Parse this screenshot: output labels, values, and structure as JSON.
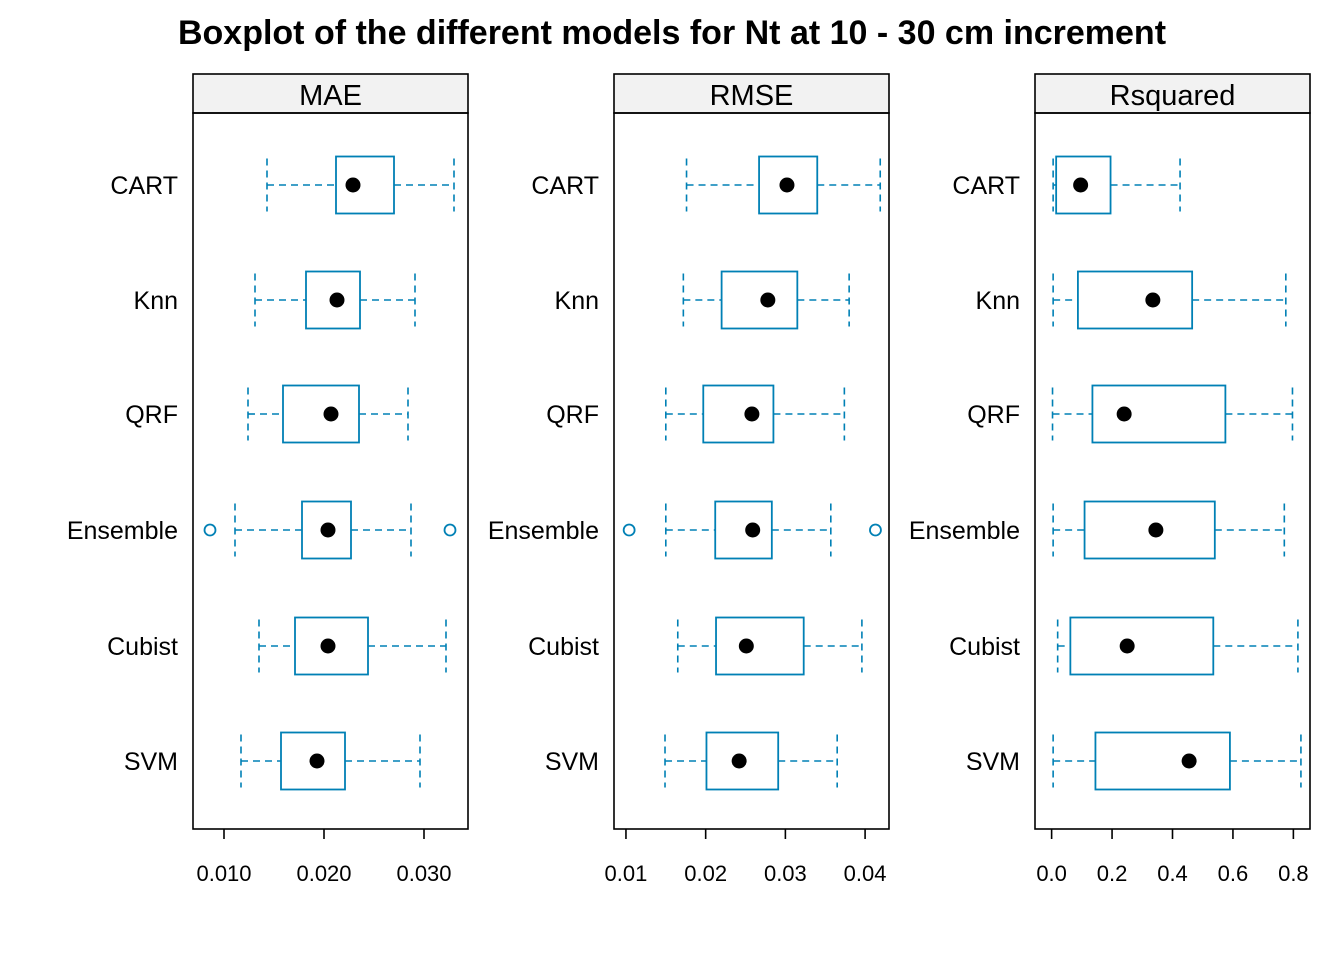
{
  "chart_data": {
    "type": "boxplot",
    "title": "Boxplot of the different models for Nt at 10 - 30 cm increment",
    "categories": [
      "CART",
      "Knn",
      "QRF",
      "Ensemble",
      "Cubist",
      "SVM"
    ],
    "colors": {
      "box": "#0080b5",
      "median_dot": "#000000",
      "strip_bg": "#f2f2f2",
      "frame": "#000000"
    },
    "panels": [
      {
        "name": "MAE",
        "xlim": [
          0.0069,
          0.0344
        ],
        "ticks": [
          0.01,
          0.02,
          0.03
        ],
        "tick_labels": [
          "0.010",
          "0.020",
          "0.030"
        ],
        "boxes": [
          {
            "category": "CART",
            "whisker_low": 0.0143,
            "q1": 0.0212,
            "median": 0.0229,
            "q3": 0.027,
            "whisker_high": 0.033,
            "outliers": []
          },
          {
            "category": "Knn",
            "whisker_low": 0.0131,
            "q1": 0.0182,
            "median": 0.0213,
            "q3": 0.0236,
            "whisker_high": 0.0291,
            "outliers": []
          },
          {
            "category": "QRF",
            "whisker_low": 0.0124,
            "q1": 0.0159,
            "median": 0.0207,
            "q3": 0.0235,
            "whisker_high": 0.0284,
            "outliers": []
          },
          {
            "category": "Ensemble",
            "whisker_low": 0.0111,
            "q1": 0.0178,
            "median": 0.0204,
            "q3": 0.0227,
            "whisker_high": 0.0287,
            "outliers": [
              0.0086,
              0.0326
            ]
          },
          {
            "category": "Cubist",
            "whisker_low": 0.0135,
            "q1": 0.0171,
            "median": 0.0204,
            "q3": 0.0244,
            "whisker_high": 0.0322,
            "outliers": []
          },
          {
            "category": "SVM",
            "whisker_low": 0.0117,
            "q1": 0.0157,
            "median": 0.0193,
            "q3": 0.0221,
            "whisker_high": 0.0296,
            "outliers": []
          }
        ]
      },
      {
        "name": "RMSE",
        "xlim": [
          0.0085,
          0.043
        ],
        "ticks": [
          0.01,
          0.02,
          0.03,
          0.04
        ],
        "tick_labels": [
          "0.01",
          "0.02",
          "0.03",
          "0.04"
        ],
        "boxes": [
          {
            "category": "CART",
            "whisker_low": 0.0176,
            "q1": 0.0267,
            "median": 0.0302,
            "q3": 0.034,
            "whisker_high": 0.0419,
            "outliers": []
          },
          {
            "category": "Knn",
            "whisker_low": 0.0172,
            "q1": 0.022,
            "median": 0.0278,
            "q3": 0.0315,
            "whisker_high": 0.038,
            "outliers": []
          },
          {
            "category": "QRF",
            "whisker_low": 0.015,
            "q1": 0.0197,
            "median": 0.0258,
            "q3": 0.0285,
            "whisker_high": 0.0374,
            "outliers": []
          },
          {
            "category": "Ensemble",
            "whisker_low": 0.015,
            "q1": 0.0212,
            "median": 0.0259,
            "q3": 0.0283,
            "whisker_high": 0.0357,
            "outliers": [
              0.0104,
              0.0413
            ]
          },
          {
            "category": "Cubist",
            "whisker_low": 0.0165,
            "q1": 0.0213,
            "median": 0.0251,
            "q3": 0.0323,
            "whisker_high": 0.0396,
            "outliers": []
          },
          {
            "category": "SVM",
            "whisker_low": 0.0149,
            "q1": 0.0201,
            "median": 0.0242,
            "q3": 0.0291,
            "whisker_high": 0.0365,
            "outliers": []
          }
        ]
      },
      {
        "name": "Rsquared",
        "xlim": [
          -0.055,
          0.855
        ],
        "ticks": [
          0.0,
          0.2,
          0.4,
          0.6,
          0.8
        ],
        "tick_labels": [
          "0.0",
          "0.2",
          "0.4",
          "0.6",
          "0.8"
        ],
        "boxes": [
          {
            "category": "CART",
            "whisker_low": 0.005,
            "q1": 0.015,
            "median": 0.096,
            "q3": 0.195,
            "whisker_high": 0.425,
            "outliers": []
          },
          {
            "category": "Knn",
            "whisker_low": 0.005,
            "q1": 0.087,
            "median": 0.335,
            "q3": 0.465,
            "whisker_high": 0.775,
            "outliers": []
          },
          {
            "category": "QRF",
            "whisker_low": 0.003,
            "q1": 0.135,
            "median": 0.24,
            "q3": 0.575,
            "whisker_high": 0.797,
            "outliers": []
          },
          {
            "category": "Ensemble",
            "whisker_low": 0.005,
            "q1": 0.109,
            "median": 0.345,
            "q3": 0.54,
            "whisker_high": 0.77,
            "outliers": []
          },
          {
            "category": "Cubist",
            "whisker_low": 0.02,
            "q1": 0.062,
            "median": 0.25,
            "q3": 0.535,
            "whisker_high": 0.815,
            "outliers": []
          },
          {
            "category": "SVM",
            "whisker_low": 0.005,
            "q1": 0.145,
            "median": 0.455,
            "q3": 0.59,
            "whisker_high": 0.825,
            "outliers": []
          }
        ]
      }
    ]
  }
}
